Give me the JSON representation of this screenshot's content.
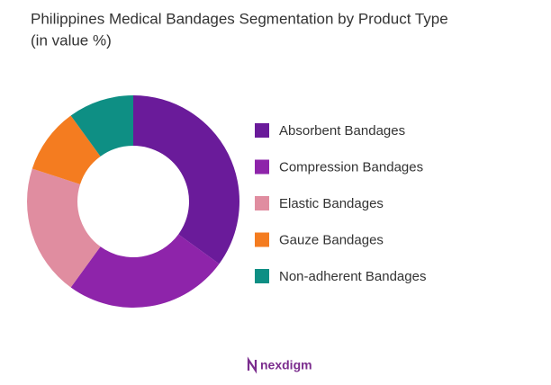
{
  "chart_data": {
    "type": "donut",
    "title": "Philippines Medical Bandages Segmentation by Product Type",
    "subtitle": "(in value %)",
    "categories": [
      "Absorbent Bandages",
      "Compression Bandages",
      "Elastic Bandages",
      "Gauze Bandages",
      "Non-adherent Bandages"
    ],
    "values": [
      35,
      25,
      20,
      10,
      10
    ],
    "colors": [
      "#6a1b9a",
      "#8e24aa",
      "#e08da0",
      "#f47c20",
      "#0e8f84"
    ],
    "legend": "right"
  },
  "footer": {
    "logo": "nexdigm"
  }
}
